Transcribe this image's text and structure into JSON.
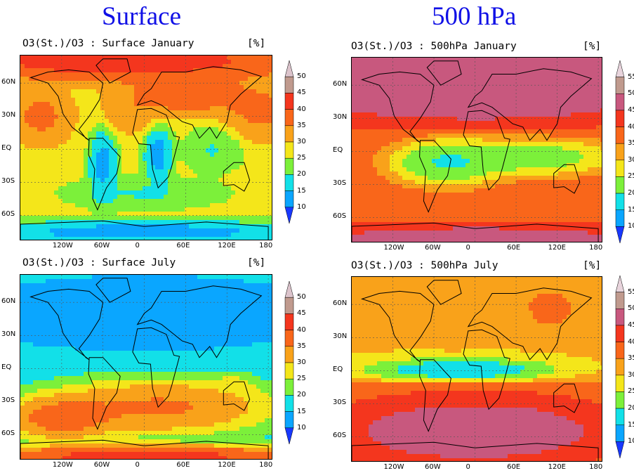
{
  "headings": {
    "surface": "Surface",
    "p500": "500 hPa"
  },
  "unit": "[%]",
  "x_ticks": [
    "120W",
    "60W",
    "0",
    "60E",
    "120E",
    "180"
  ],
  "y_ticks": [
    "60N",
    "30N",
    "EQ",
    "30S",
    "60S"
  ],
  "colorbars": {
    "surface": {
      "levels": [
        10,
        15,
        20,
        25,
        30,
        35,
        40,
        45,
        50
      ],
      "labels": [
        "10",
        "15",
        "20",
        "25",
        "30",
        "35",
        "40",
        "45",
        "50"
      ],
      "colors": [
        "#1838ff",
        "#0aa6ff",
        "#12e0e8",
        "#7cf03a",
        "#f4e61a",
        "#f9a21a",
        "#f9661a",
        "#f4361e",
        "#c09a8e",
        "#dcc4cc"
      ]
    },
    "p500": {
      "levels": [
        10,
        15,
        20,
        25,
        30,
        35,
        40,
        45,
        50,
        55
      ],
      "labels": [
        "10",
        "15",
        "20",
        "25",
        "30",
        "35",
        "40",
        "45",
        "50",
        "55"
      ],
      "colors": [
        "#1838ff",
        "#0aa6ff",
        "#12e0e8",
        "#7cf03a",
        "#f4e61a",
        "#f9a21a",
        "#f9661a",
        "#f4361e",
        "#c8587e",
        "#c09a8e",
        "#e8d4dc"
      ]
    }
  },
  "panels": [
    {
      "id": "sfc-jan",
      "title": "O3(St.)/O3 : Surface January",
      "scale": "surface",
      "base_value": 27,
      "blobs": [
        {
          "lon": -30,
          "lat": 80,
          "rx": 200,
          "ry": 14,
          "v": 46
        },
        {
          "lon": -150,
          "lat": 30,
          "rx": 35,
          "ry": 20,
          "v": 38
        },
        {
          "lon": 170,
          "lat": 35,
          "rx": 45,
          "ry": 20,
          "v": 38
        },
        {
          "lon": -20,
          "lat": 35,
          "rx": 30,
          "ry": 15,
          "v": 36
        },
        {
          "lon": 60,
          "lat": 50,
          "rx": 70,
          "ry": 15,
          "v": 40
        },
        {
          "lon": -60,
          "lat": -15,
          "rx": 15,
          "ry": 25,
          "v": 10
        },
        {
          "lon": 20,
          "lat": -5,
          "rx": 15,
          "ry": 20,
          "v": 10
        },
        {
          "lon": 100,
          "lat": 0,
          "rx": 30,
          "ry": 15,
          "v": 18
        },
        {
          "lon": 0,
          "lat": -40,
          "rx": 80,
          "ry": 10,
          "v": 18
        },
        {
          "lon": 0,
          "lat": -75,
          "rx": 200,
          "ry": 8,
          "v": 10
        }
      ]
    },
    {
      "id": "p500-jan",
      "title": "O3(St.)/O3 : 500hPa January",
      "scale": "p500",
      "base_value": 38,
      "blobs": [
        {
          "lon": 0,
          "lat": 70,
          "rx": 200,
          "ry": 30,
          "v": 52
        },
        {
          "lon": 0,
          "lat": 40,
          "rx": 200,
          "ry": 10,
          "v": 47
        },
        {
          "lon": -40,
          "lat": -10,
          "rx": 60,
          "ry": 15,
          "v": 15
        },
        {
          "lon": 80,
          "lat": -5,
          "rx": 90,
          "ry": 12,
          "v": 18
        },
        {
          "lon": 0,
          "lat": -80,
          "rx": 200,
          "ry": 10,
          "v": 50
        }
      ]
    },
    {
      "id": "sfc-jul",
      "title": "O3(St.)/O3 : Surface July",
      "scale": "surface",
      "base_value": 18,
      "blobs": [
        {
          "lon": 0,
          "lat": 50,
          "rx": 200,
          "ry": 25,
          "v": 10
        },
        {
          "lon": 20,
          "lat": -35,
          "rx": 120,
          "ry": 18,
          "v": 40
        },
        {
          "lon": -120,
          "lat": -45,
          "rx": 60,
          "ry": 15,
          "v": 42
        },
        {
          "lon": 0,
          "lat": -80,
          "rx": 200,
          "ry": 8,
          "v": 48
        },
        {
          "lon": 130,
          "lat": -20,
          "rx": 20,
          "ry": 10,
          "v": 30
        }
      ]
    },
    {
      "id": "p500-jul",
      "title": "O3(St.)/O3 : 500hPa July",
      "scale": "p500",
      "base_value": 30,
      "blobs": [
        {
          "lon": 0,
          "lat": 70,
          "rx": 200,
          "ry": 15,
          "v": 36
        },
        {
          "lon": -30,
          "lat": 50,
          "rx": 40,
          "ry": 15,
          "v": 35
        },
        {
          "lon": 110,
          "lat": 55,
          "rx": 20,
          "ry": 10,
          "v": 42
        },
        {
          "lon": -20,
          "lat": 0,
          "rx": 100,
          "ry": 8,
          "v": 12
        },
        {
          "lon": 0,
          "lat": -20,
          "rx": 200,
          "ry": 6,
          "v": 40
        },
        {
          "lon": 0,
          "lat": -55,
          "rx": 200,
          "ry": 30,
          "v": 52
        }
      ]
    }
  ]
}
